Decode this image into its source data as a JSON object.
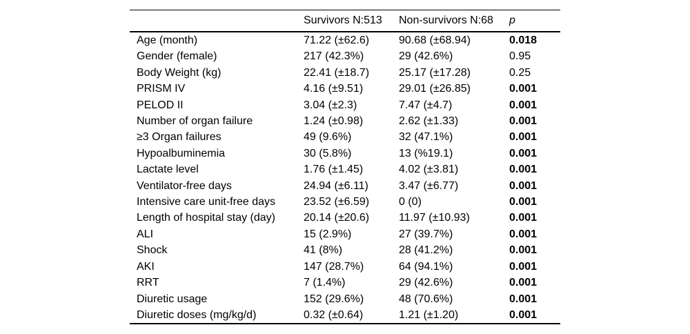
{
  "table": {
    "columns": [
      "",
      "Survivors N:513",
      "Non-survivors N:68",
      "p"
    ],
    "rows": [
      {
        "label": "Age (month)",
        "survivors": "71.22 (±62.6)",
        "non_survivors": "90.68 (±68.94)",
        "p": "0.018",
        "p_bold": true
      },
      {
        "label": "Gender (female)",
        "survivors": "217 (42.3%)",
        "non_survivors": "29 (42.6%)",
        "p": "0.95",
        "p_bold": false
      },
      {
        "label": "Body Weight (kg)",
        "survivors": "22.41 (±18.7)",
        "non_survivors": "25.17 (±17.28)",
        "p": "0.25",
        "p_bold": false
      },
      {
        "label": "PRISM IV",
        "survivors": "4.16 (±9.51)",
        "non_survivors": "29.01 (±26.85)",
        "p": "0.001",
        "p_bold": true
      },
      {
        "label": "PELOD II",
        "survivors": "3.04 (±2.3)",
        "non_survivors": "7.47 (±4.7)",
        "p": "0.001",
        "p_bold": true
      },
      {
        "label": "Number of organ failure",
        "survivors": "1.24 (±0.98)",
        "non_survivors": "2.62 (±1.33)",
        "p": "0.001",
        "p_bold": true
      },
      {
        "label": "≥3 Organ failures",
        "survivors": "49 (9.6%)",
        "non_survivors": "32 (47.1%)",
        "p": "0.001",
        "p_bold": true
      },
      {
        "label": "Hypoalbuminemia",
        "survivors": "30 (5.8%)",
        "non_survivors": "13 (%19.1)",
        "p": "0.001",
        "p_bold": true
      },
      {
        "label": "Lactate level",
        "survivors": "1.76 (±1.45)",
        "non_survivors": "4.02 (±3.81)",
        "p": "0.001",
        "p_bold": true
      },
      {
        "label": "Ventilator-free days",
        "survivors": "24.94 (±6.11)",
        "non_survivors": "3.47 (±6.77)",
        "p": "0.001",
        "p_bold": true
      },
      {
        "label": "Intensive care unit-free days",
        "survivors": "23.52 (±6.59)",
        "non_survivors": "0 (0)",
        "p": "0.001",
        "p_bold": true
      },
      {
        "label": "Length of hospital stay (day)",
        "survivors": "20.14 (±20.6)",
        "non_survivors": "11.97 (±10.93)",
        "p": "0.001",
        "p_bold": true
      },
      {
        "label": "ALI",
        "survivors": "15 (2.9%)",
        "non_survivors": "27 (39.7%)",
        "p": "0.001",
        "p_bold": true
      },
      {
        "label": "Shock",
        "survivors": "41 (8%)",
        "non_survivors": "28 (41.2%)",
        "p": "0.001",
        "p_bold": true
      },
      {
        "label": "AKI",
        "survivors": "147 (28.7%)",
        "non_survivors": "64 (94.1%)",
        "p": "0.001",
        "p_bold": true
      },
      {
        "label": "RRT",
        "survivors": "7 (1.4%)",
        "non_survivors": "29 (42.6%)",
        "p": "0.001",
        "p_bold": true
      },
      {
        "label": "Diuretic usage",
        "survivors": "152 (29.6%)",
        "non_survivors": "48 (70.6%)",
        "p": "0.001",
        "p_bold": true
      },
      {
        "label": "Diuretic doses (mg/kg/d)",
        "survivors": "0.32 (±0.64)",
        "non_survivors": "1.21 (±1.20)",
        "p": "0.001",
        "p_bold": true
      }
    ]
  },
  "colors": {
    "text": "#000000",
    "background": "#ffffff",
    "rule": "#000000"
  }
}
